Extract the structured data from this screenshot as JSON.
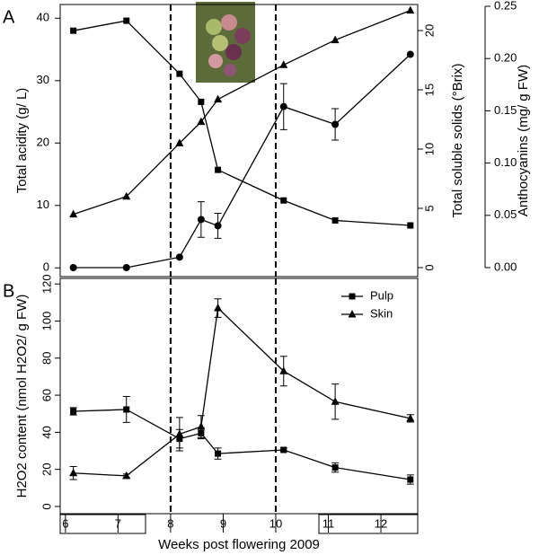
{
  "chart_data": [
    {
      "type": "line",
      "panel": "A",
      "ylabel": "Total acidity (g/ L)",
      "y2label": "Total soluble solids (°Brix)",
      "y3label": "Anthocyanins (mg/ g FW)",
      "xlim": [
        5.9,
        12.7
      ],
      "ylim": [
        -1.4,
        42.2
      ],
      "yticks": [
        0,
        10,
        20,
        30,
        40
      ],
      "y2lim": [
        -0.76,
        22.2
      ],
      "y2ticks": [
        0,
        5,
        10,
        15,
        20
      ],
      "y3lim": [
        -0.0086,
        0.2517
      ],
      "y3ticks": [
        {
          "value": 0,
          "label": "0.00"
        },
        0.05,
        {
          "value": 0.1,
          "label": "0.10"
        },
        0.15,
        {
          "value": 0.2,
          "label": "0.20"
        },
        0.25
      ],
      "vlines": [
        8,
        10
      ],
      "x": [
        6.15,
        7.16,
        8.17,
        8.58,
        8.9,
        10.15,
        11.13,
        12.56
      ],
      "series": [
        {
          "marker": "square",
          "color": "#000000",
          "axis": "y",
          "values": [
            38.0,
            39.6,
            31.1,
            26.6,
            15.7,
            10.8,
            7.6,
            6.8
          ]
        },
        {
          "marker": "triangle",
          "color": "#000000",
          "axis": "y2",
          "values": [
            4.5,
            6.0,
            10.5,
            12.3,
            14.2,
            17.1,
            19.2,
            21.7
          ]
        },
        {
          "marker": "circle",
          "color": "#000000",
          "axis": "y3",
          "values": [
            0,
            0,
            0.01,
            0.046,
            0.04,
            0.154,
            0.137,
            0.204
          ],
          "errors": [
            null,
            null,
            null,
            0.017,
            0.012,
            0.022,
            0.015,
            null
          ]
        }
      ]
    },
    {
      "type": "line",
      "panel": "B",
      "ylabel": "H2O2 content (nmol H2O2/ g FW)",
      "xlabel": "Weeks post flowering 2009",
      "xlim": [
        5.9,
        12.7
      ],
      "xticks": [
        6,
        7,
        8,
        9,
        10,
        11,
        12
      ],
      "ylim": [
        -3.9,
        123
      ],
      "yticks": [
        0,
        20,
        40,
        60,
        80,
        100,
        120
      ],
      "vlines": [
        8,
        10
      ],
      "legend": "upper right",
      "x": [
        6.15,
        7.16,
        8.17,
        8.58,
        8.9,
        10.15,
        11.13,
        12.56
      ],
      "series": [
        {
          "name": "Pulp",
          "marker": "square",
          "color": "#000000",
          "values": [
            51.3,
            52.3,
            36.5,
            39.5,
            28.5,
            30.5,
            21,
            14.5
          ],
          "errors": [
            2,
            7,
            5,
            3,
            3,
            1,
            2.5,
            2.5
          ]
        },
        {
          "name": "Skin",
          "marker": "triangle",
          "color": "#000000",
          "values": [
            18,
            16.5,
            39,
            43,
            107,
            73,
            56.5,
            47.5
          ],
          "errors": [
            3.5,
            1,
            9,
            6,
            5,
            8,
            9.5,
            2
          ]
        }
      ]
    }
  ]
}
